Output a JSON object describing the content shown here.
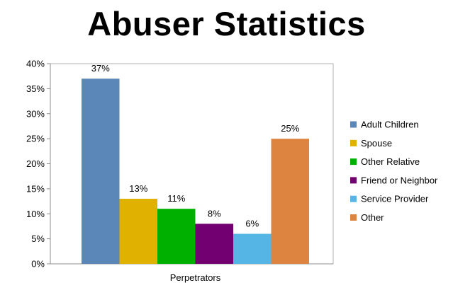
{
  "chart_data": {
    "type": "bar",
    "title": "Abuser Statistics",
    "xlabel": "",
    "ylabel": "",
    "categories": [
      "Perpetrators"
    ],
    "ylim": [
      0,
      40
    ],
    "y_tick_step": 5,
    "y_tick_format": "percent",
    "grid": false,
    "legend_position": "right",
    "series": [
      {
        "name": "Adult Children",
        "values": [
          37
        ],
        "color": "#5b87b8",
        "label": "37%"
      },
      {
        "name": "Spouse",
        "values": [
          13
        ],
        "color": "#e0b100",
        "label": "13%"
      },
      {
        "name": "Other Relative",
        "values": [
          11
        ],
        "color": "#00b000",
        "label": "11%"
      },
      {
        "name": "Friend or Neighbor",
        "values": [
          8
        ],
        "color": "#720070",
        "label": "8%"
      },
      {
        "name": "Service Provider",
        "values": [
          6
        ],
        "color": "#55b5e5",
        "label": "6%"
      },
      {
        "name": "Other",
        "values": [
          25
        ],
        "color": "#dd8540",
        "label": "25%"
      }
    ]
  }
}
